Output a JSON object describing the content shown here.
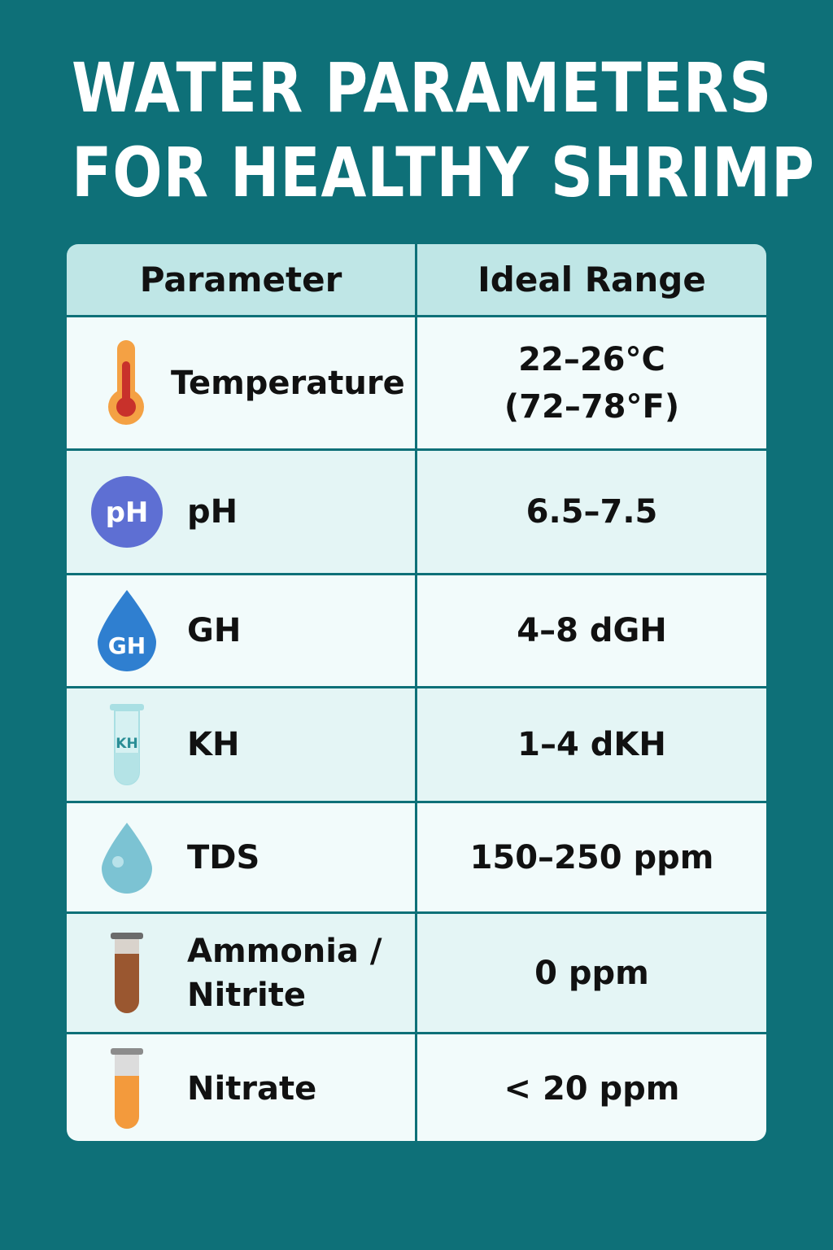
{
  "title": {
    "line1": "WATER PARAMETERS",
    "line2": "FOR HEALTHY SHRIMP"
  },
  "table": {
    "headers": [
      "Parameter",
      "Ideal Range"
    ],
    "rows": [
      {
        "icon": "thermometer-icon",
        "name": "Temperature",
        "range": "22–26°C",
        "range2": "(72–78°F)"
      },
      {
        "icon": "ph-icon",
        "name": "pH",
        "range": "6.5–7.5",
        "icon_text": "pH"
      },
      {
        "icon": "gh-water-drop-icon",
        "name": "GH",
        "range": "4–8 dGH",
        "icon_text": "GH"
      },
      {
        "icon": "kh-test-tube-icon",
        "name": "KH",
        "range": "1–4 dKH",
        "icon_text": "KH"
      },
      {
        "icon": "water-drop-icon",
        "name": "TDS",
        "range": "150–250 ppm"
      },
      {
        "icon": "brown-test-tube-icon",
        "name": "Ammonia /",
        "name2": "Nitrite",
        "range": "0 ppm"
      },
      {
        "icon": "orange-test-tube-icon",
        "name": "Nitrate",
        "range": "< 20 ppm"
      }
    ]
  },
  "colors": {
    "background": "#0e7078",
    "header_row": "#bfe6e6",
    "row_light": "#f2fbfb",
    "row_tint": "#e4f5f5"
  }
}
